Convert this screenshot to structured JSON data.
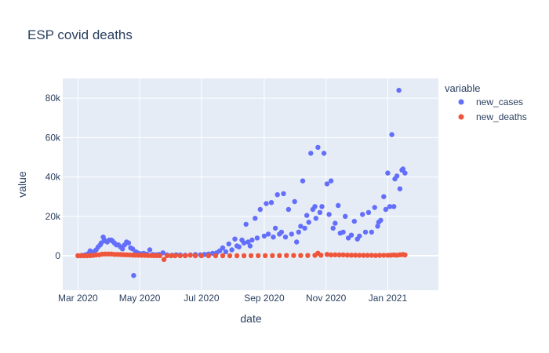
{
  "chart_data": {
    "type": "scatter",
    "title": "ESP covid deaths",
    "xlabel": "date",
    "ylabel": "value",
    "x_range": [
      "2020-02-15",
      "2021-02-20"
    ],
    "ylim": [
      -17500,
      90000
    ],
    "x_ticks": [
      {
        "date": "2020-03-01",
        "label": "Mar 2020"
      },
      {
        "date": "2020-05-01",
        "label": "May 2020"
      },
      {
        "date": "2020-07-01",
        "label": "Jul 2020"
      },
      {
        "date": "2020-09-01",
        "label": "Sep 2020"
      },
      {
        "date": "2020-11-01",
        "label": "Nov 2020"
      },
      {
        "date": "2021-01-01",
        "label": "Jan 2021"
      }
    ],
    "y_ticks": [
      {
        "value": 0,
        "label": "0"
      },
      {
        "value": 20000,
        "label": "20k"
      },
      {
        "value": 40000,
        "label": "40k"
      },
      {
        "value": 60000,
        "label": "60k"
      },
      {
        "value": 80000,
        "label": "80k"
      }
    ],
    "grid": true,
    "plot_background": "#e5ecf6",
    "legend": {
      "title": "variable",
      "position": "right"
    },
    "series": [
      {
        "name": "new_cases",
        "color": "#636efa",
        "points": [
          [
            "2020-03-01",
            0
          ],
          [
            "2020-03-05",
            200
          ],
          [
            "2020-03-08",
            400
          ],
          [
            "2020-03-11",
            1000
          ],
          [
            "2020-03-13",
            2500
          ],
          [
            "2020-03-15",
            1500
          ],
          [
            "2020-03-17",
            2000
          ],
          [
            "2020-03-19",
            3000
          ],
          [
            "2020-03-21",
            4500
          ],
          [
            "2020-03-23",
            5500
          ],
          [
            "2020-03-24",
            6500
          ],
          [
            "2020-03-26",
            9500
          ],
          [
            "2020-03-27",
            8000
          ],
          [
            "2020-03-28",
            7500
          ],
          [
            "2020-03-30",
            7000
          ],
          [
            "2020-04-01",
            8000
          ],
          [
            "2020-04-03",
            8000
          ],
          [
            "2020-04-04",
            7500
          ],
          [
            "2020-04-06",
            6500
          ],
          [
            "2020-04-08",
            5500
          ],
          [
            "2020-04-10",
            5500
          ],
          [
            "2020-04-12",
            4500
          ],
          [
            "2020-04-14",
            3500
          ],
          [
            "2020-04-16",
            5500
          ],
          [
            "2020-04-18",
            7000
          ],
          [
            "2020-04-20",
            6500
          ],
          [
            "2020-04-22",
            4000
          ],
          [
            "2020-04-24",
            3500
          ],
          [
            "2020-04-25",
            -10000
          ],
          [
            "2020-04-27",
            2000
          ],
          [
            "2020-04-29",
            1500
          ],
          [
            "2020-05-02",
            1000
          ],
          [
            "2020-05-05",
            1200
          ],
          [
            "2020-05-08",
            800
          ],
          [
            "2020-05-11",
            3000
          ],
          [
            "2020-05-14",
            600
          ],
          [
            "2020-05-17",
            500
          ],
          [
            "2020-05-20",
            700
          ],
          [
            "2020-05-24",
            1500
          ],
          [
            "2020-05-28",
            400
          ],
          [
            "2020-06-02",
            300
          ],
          [
            "2020-06-06",
            500
          ],
          [
            "2020-06-10",
            400
          ],
          [
            "2020-06-15",
            300
          ],
          [
            "2020-06-20",
            400
          ],
          [
            "2020-06-25",
            600
          ],
          [
            "2020-06-30",
            500
          ],
          [
            "2020-07-04",
            700
          ],
          [
            "2020-07-08",
            900
          ],
          [
            "2020-07-12",
            1200
          ],
          [
            "2020-07-16",
            1500
          ],
          [
            "2020-07-19",
            2500
          ],
          [
            "2020-07-22",
            4000
          ],
          [
            "2020-07-25",
            2000
          ],
          [
            "2020-07-28",
            6000
          ],
          [
            "2020-07-31",
            3000
          ],
          [
            "2020-08-03",
            8500
          ],
          [
            "2020-08-05",
            5000
          ],
          [
            "2020-08-07",
            4500
          ],
          [
            "2020-08-10",
            8000
          ],
          [
            "2020-08-12",
            6500
          ],
          [
            "2020-08-14",
            16000
          ],
          [
            "2020-08-16",
            7000
          ],
          [
            "2020-08-18",
            5000
          ],
          [
            "2020-08-20",
            8000
          ],
          [
            "2020-08-23",
            19000
          ],
          [
            "2020-08-25",
            9000
          ],
          [
            "2020-08-28",
            23500
          ],
          [
            "2020-09-01",
            10000
          ],
          [
            "2020-09-03",
            26500
          ],
          [
            "2020-09-05",
            11000
          ],
          [
            "2020-09-08",
            27000
          ],
          [
            "2020-09-10",
            9500
          ],
          [
            "2020-09-12",
            14000
          ],
          [
            "2020-09-14",
            31000
          ],
          [
            "2020-09-16",
            11000
          ],
          [
            "2020-09-18",
            12000
          ],
          [
            "2020-09-20",
            31500
          ],
          [
            "2020-09-22",
            9500
          ],
          [
            "2020-09-25",
            23500
          ],
          [
            "2020-09-28",
            11000
          ],
          [
            "2020-10-01",
            27500
          ],
          [
            "2020-10-03",
            7000
          ],
          [
            "2020-10-05",
            12000
          ],
          [
            "2020-10-07",
            15000
          ],
          [
            "2020-10-09",
            38000
          ],
          [
            "2020-10-11",
            14000
          ],
          [
            "2020-10-13",
            20500
          ],
          [
            "2020-10-15",
            17000
          ],
          [
            "2020-10-17",
            52000
          ],
          [
            "2020-10-19",
            23500
          ],
          [
            "2020-10-21",
            25000
          ],
          [
            "2020-10-22",
            19000
          ],
          [
            "2020-10-24",
            55000
          ],
          [
            "2020-10-26",
            22000
          ],
          [
            "2020-10-28",
            25000
          ],
          [
            "2020-10-30",
            52000
          ],
          [
            "2020-11-02",
            36500
          ],
          [
            "2020-11-04",
            21000
          ],
          [
            "2020-11-06",
            38000
          ],
          [
            "2020-11-08",
            14000
          ],
          [
            "2020-11-10",
            16500
          ],
          [
            "2020-11-13",
            25500
          ],
          [
            "2020-11-15",
            11500
          ],
          [
            "2020-11-18",
            12000
          ],
          [
            "2020-11-20",
            20000
          ],
          [
            "2020-11-23",
            9000
          ],
          [
            "2020-11-26",
            10500
          ],
          [
            "2020-11-29",
            17500
          ],
          [
            "2020-12-02",
            8500
          ],
          [
            "2020-12-04",
            10000
          ],
          [
            "2020-12-07",
            21000
          ],
          [
            "2020-12-10",
            12000
          ],
          [
            "2020-12-13",
            22000
          ],
          [
            "2020-12-16",
            12000
          ],
          [
            "2020-12-19",
            24500
          ],
          [
            "2020-12-22",
            15000
          ],
          [
            "2020-12-23",
            17000
          ],
          [
            "2020-12-25",
            18000
          ],
          [
            "2020-12-28",
            30000
          ],
          [
            "2020-12-30",
            23500
          ],
          [
            "2021-01-01",
            42000
          ],
          [
            "2021-01-03",
            25000
          ],
          [
            "2021-01-05",
            61500
          ],
          [
            "2021-01-07",
            25000
          ],
          [
            "2021-01-08",
            39000
          ],
          [
            "2021-01-10",
            40500
          ],
          [
            "2021-01-12",
            84000
          ],
          [
            "2021-01-13",
            34000
          ],
          [
            "2021-01-15",
            43500
          ],
          [
            "2021-01-16",
            44000
          ],
          [
            "2021-01-18",
            42000
          ]
        ]
      },
      {
        "name": "new_deaths",
        "color": "#ef553b",
        "points": [
          [
            "2020-03-01",
            0
          ],
          [
            "2020-03-04",
            0
          ],
          [
            "2020-03-07",
            10
          ],
          [
            "2020-03-10",
            30
          ],
          [
            "2020-03-13",
            100
          ],
          [
            "2020-03-16",
            200
          ],
          [
            "2020-03-19",
            400
          ],
          [
            "2020-03-22",
            500
          ],
          [
            "2020-03-25",
            800
          ],
          [
            "2020-03-28",
            900
          ],
          [
            "2020-03-31",
            900
          ],
          [
            "2020-04-03",
            900
          ],
          [
            "2020-04-06",
            700
          ],
          [
            "2020-04-09",
            700
          ],
          [
            "2020-04-12",
            600
          ],
          [
            "2020-04-15",
            550
          ],
          [
            "2020-04-18",
            500
          ],
          [
            "2020-04-21",
            400
          ],
          [
            "2020-04-24",
            350
          ],
          [
            "2020-04-27",
            300
          ],
          [
            "2020-04-30",
            250
          ],
          [
            "2020-05-03",
            200
          ],
          [
            "2020-05-06",
            200
          ],
          [
            "2020-05-09",
            150
          ],
          [
            "2020-05-12",
            150
          ],
          [
            "2020-05-15",
            100
          ],
          [
            "2020-05-18",
            80
          ],
          [
            "2020-05-21",
            60
          ],
          [
            "2020-05-25",
            -1900
          ],
          [
            "2020-05-28",
            50
          ],
          [
            "2020-06-01",
            30
          ],
          [
            "2020-06-05",
            20
          ],
          [
            "2020-06-10",
            20
          ],
          [
            "2020-06-15",
            10
          ],
          [
            "2020-06-20",
            300
          ],
          [
            "2020-06-25",
            10
          ],
          [
            "2020-07-01",
            5
          ],
          [
            "2020-07-08",
            5
          ],
          [
            "2020-07-15",
            5
          ],
          [
            "2020-07-22",
            10
          ],
          [
            "2020-07-29",
            10
          ],
          [
            "2020-08-05",
            20
          ],
          [
            "2020-08-12",
            30
          ],
          [
            "2020-08-19",
            40
          ],
          [
            "2020-08-26",
            50
          ],
          [
            "2020-09-02",
            60
          ],
          [
            "2020-09-09",
            80
          ],
          [
            "2020-09-16",
            100
          ],
          [
            "2020-09-23",
            120
          ],
          [
            "2020-09-30",
            130
          ],
          [
            "2020-10-07",
            150
          ],
          [
            "2020-10-14",
            150
          ],
          [
            "2020-10-21",
            200
          ],
          [
            "2020-10-24",
            1300
          ],
          [
            "2020-10-27",
            300
          ],
          [
            "2020-11-02",
            700
          ],
          [
            "2020-11-06",
            400
          ],
          [
            "2020-11-10",
            500
          ],
          [
            "2020-11-14",
            400
          ],
          [
            "2020-11-18",
            450
          ],
          [
            "2020-11-22",
            350
          ],
          [
            "2020-11-26",
            300
          ],
          [
            "2020-11-30",
            300
          ],
          [
            "2020-12-04",
            250
          ],
          [
            "2020-12-08",
            200
          ],
          [
            "2020-12-12",
            200
          ],
          [
            "2020-12-16",
            200
          ],
          [
            "2020-12-20",
            150
          ],
          [
            "2020-12-24",
            200
          ],
          [
            "2020-12-28",
            250
          ],
          [
            "2021-01-01",
            250
          ],
          [
            "2021-01-04",
            300
          ],
          [
            "2021-01-07",
            400
          ],
          [
            "2021-01-10",
            300
          ],
          [
            "2021-01-13",
            500
          ],
          [
            "2021-01-16",
            600
          ],
          [
            "2021-01-18",
            400
          ]
        ]
      }
    ]
  }
}
